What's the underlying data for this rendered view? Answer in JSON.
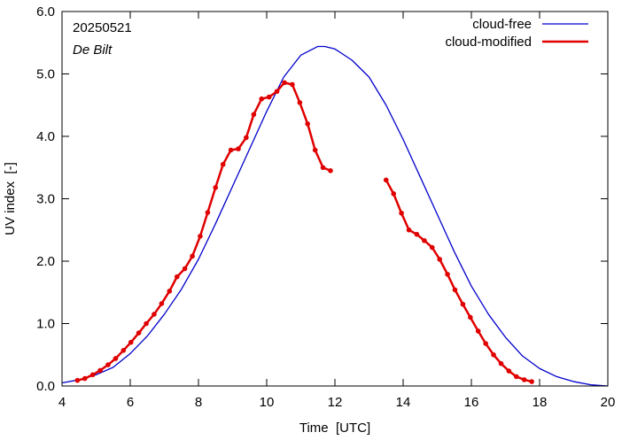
{
  "chart_data": {
    "type": "line",
    "date_label": "20250521",
    "location_label": "De Bilt",
    "xlabel": "Time  [UTC]",
    "ylabel": "UV index  [-]",
    "xlim": [
      4,
      20
    ],
    "ylim": [
      0,
      6
    ],
    "x_ticks": [
      4,
      6,
      8,
      10,
      12,
      14,
      16,
      18,
      20
    ],
    "x_tick_labels": [
      "4",
      "6",
      "8",
      "10",
      "12",
      "14",
      "16",
      "18",
      "20"
    ],
    "y_ticks": [
      0,
      1,
      2,
      3,
      4,
      5,
      6
    ],
    "y_tick_labels": [
      "0.0",
      "1.0",
      "2.0",
      "3.0",
      "4.0",
      "5.0",
      "6.0"
    ],
    "legend_position": "top-right",
    "series": [
      {
        "name": "cloud-free",
        "color": "#0000cc",
        "markers": false,
        "points": [
          [
            4.0,
            0.05
          ],
          [
            4.5,
            0.1
          ],
          [
            5.0,
            0.18
          ],
          [
            5.5,
            0.3
          ],
          [
            6.0,
            0.52
          ],
          [
            6.5,
            0.8
          ],
          [
            7.0,
            1.15
          ],
          [
            7.5,
            1.55
          ],
          [
            8.0,
            2.03
          ],
          [
            8.5,
            2.6
          ],
          [
            9.0,
            3.2
          ],
          [
            9.5,
            3.8
          ],
          [
            10.0,
            4.4
          ],
          [
            10.5,
            4.95
          ],
          [
            11.0,
            5.3
          ],
          [
            11.5,
            5.44
          ],
          [
            11.7,
            5.44
          ],
          [
            12.0,
            5.4
          ],
          [
            12.5,
            5.22
          ],
          [
            13.0,
            4.95
          ],
          [
            13.5,
            4.5
          ],
          [
            14.0,
            3.95
          ],
          [
            14.5,
            3.35
          ],
          [
            15.0,
            2.75
          ],
          [
            15.5,
            2.15
          ],
          [
            16.0,
            1.6
          ],
          [
            16.5,
            1.15
          ],
          [
            17.0,
            0.78
          ],
          [
            17.5,
            0.48
          ],
          [
            18.0,
            0.28
          ],
          [
            18.5,
            0.15
          ],
          [
            19.0,
            0.07
          ],
          [
            19.5,
            0.02
          ],
          [
            20.0,
            0.0
          ]
        ]
      },
      {
        "name": "cloud-modified",
        "color": "#e00000",
        "markers": true,
        "segments": [
          [
            [
              4.45,
              0.09
            ],
            [
              4.67,
              0.12
            ],
            [
              4.9,
              0.18
            ],
            [
              5.12,
              0.25
            ],
            [
              5.35,
              0.34
            ],
            [
              5.57,
              0.44
            ],
            [
              5.8,
              0.57
            ],
            [
              6.02,
              0.7
            ],
            [
              6.25,
              0.85
            ],
            [
              6.47,
              1.0
            ],
            [
              6.7,
              1.15
            ],
            [
              6.92,
              1.32
            ],
            [
              7.15,
              1.52
            ],
            [
              7.37,
              1.75
            ],
            [
              7.6,
              1.88
            ],
            [
              7.82,
              2.08
            ],
            [
              8.05,
              2.4
            ],
            [
              8.27,
              2.78
            ],
            [
              8.5,
              3.18
            ],
            [
              8.72,
              3.55
            ],
            [
              8.95,
              3.78
            ],
            [
              9.17,
              3.8
            ],
            [
              9.4,
              3.98
            ],
            [
              9.62,
              4.35
            ],
            [
              9.85,
              4.6
            ],
            [
              10.07,
              4.63
            ],
            [
              10.3,
              4.72
            ],
            [
              10.52,
              4.86
            ],
            [
              10.75,
              4.83
            ],
            [
              10.97,
              4.54
            ],
            [
              11.2,
              4.2
            ],
            [
              11.42,
              3.78
            ],
            [
              11.65,
              3.5
            ],
            [
              11.87,
              3.45
            ]
          ],
          [
            [
              13.5,
              3.3
            ],
            [
              13.72,
              3.08
            ],
            [
              13.95,
              2.77
            ],
            [
              14.17,
              2.5
            ],
            [
              14.4,
              2.43
            ],
            [
              14.62,
              2.33
            ],
            [
              14.85,
              2.22
            ],
            [
              15.07,
              2.03
            ],
            [
              15.3,
              1.79
            ],
            [
              15.52,
              1.54
            ],
            [
              15.75,
              1.31
            ],
            [
              15.97,
              1.1
            ],
            [
              16.2,
              0.88
            ],
            [
              16.42,
              0.68
            ],
            [
              16.65,
              0.5
            ],
            [
              16.87,
              0.36
            ],
            [
              17.1,
              0.24
            ],
            [
              17.32,
              0.15
            ],
            [
              17.55,
              0.1
            ],
            [
              17.77,
              0.07
            ]
          ]
        ]
      }
    ]
  }
}
